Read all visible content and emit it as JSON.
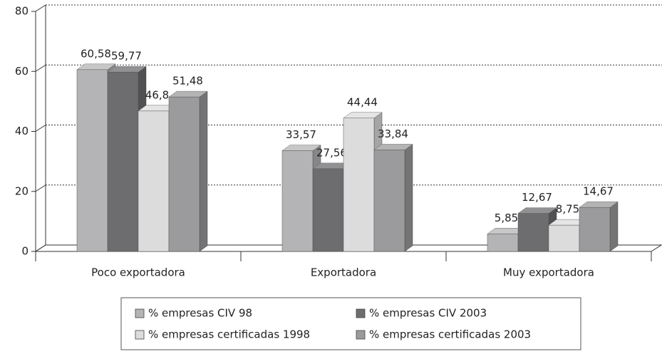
{
  "chart_data": {
    "type": "bar3d",
    "categories": [
      "Poco exportadora",
      "Exportadora",
      "Muy exportadora"
    ],
    "series": [
      {
        "name": "% empresas CIV 98",
        "color": "#b4b4b6",
        "values": [
          60.58,
          33.57,
          5.85
        ],
        "value_labels": [
          "60,58",
          "33,57",
          "5,85"
        ]
      },
      {
        "name": "% empresas CIV 2003",
        "color": "#6d6d6f",
        "values": [
          59.77,
          27.56,
          12.67
        ],
        "value_labels": [
          "59,77",
          "27,56",
          "12,67"
        ]
      },
      {
        "name": "% empresas certificadas 1998",
        "color": "#dcdcdd",
        "values": [
          46.8,
          44.44,
          8.75
        ],
        "value_labels": [
          "46,8",
          "44,44",
          "8,75"
        ]
      },
      {
        "name": "% empresas certificadas 2003",
        "color": "#9b9b9d",
        "values": [
          51.48,
          33.84,
          14.67
        ],
        "value_labels": [
          "51,48",
          "33,84",
          "14,67"
        ]
      }
    ],
    "ylim": [
      0,
      80
    ],
    "yticks": [
      0,
      20,
      40,
      60,
      80
    ],
    "grid": true,
    "legend": "bottom"
  }
}
